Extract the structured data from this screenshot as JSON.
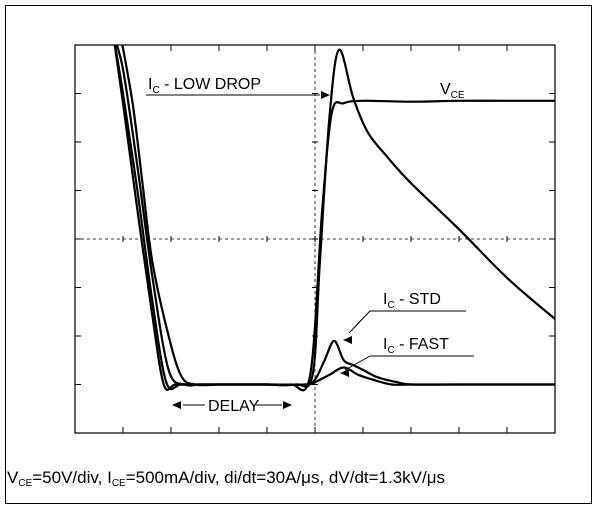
{
  "chart_data": {
    "type": "line",
    "title": "",
    "xlabel": "",
    "ylabel": "",
    "xlim": [
      0,
      10
    ],
    "ylim": [
      0,
      8
    ],
    "grid": "oscilloscope graticule: 10 x 8 divisions, dashed center lines, minor ticks",
    "series": [
      {
        "name": "VCE",
        "x": [
          0.95,
          1.2,
          1.4,
          1.6,
          1.9,
          2.2,
          2.5,
          3.0,
          3.5,
          4.0,
          4.5,
          4.9,
          5.15,
          5.35,
          5.6,
          6.0,
          7.0,
          8.0,
          9.0,
          10.0
        ],
        "values": [
          8.2,
          6.8,
          5.2,
          3.6,
          2.2,
          1.2,
          1.0,
          1.0,
          1.0,
          1.0,
          1.0,
          1.2,
          4.6,
          6.6,
          6.8,
          6.85,
          6.83,
          6.85,
          6.85,
          6.85
        ]
      },
      {
        "name": "IC - LOW DROP",
        "x": [
          0.8,
          1.0,
          1.3,
          1.6,
          1.95,
          2.3,
          2.6,
          3.0,
          3.5,
          4.0,
          4.6,
          4.95,
          5.1,
          5.3,
          5.5,
          5.8,
          6.1,
          6.5,
          7.0,
          8.0,
          9.0,
          10.0
        ],
        "values": [
          8.2,
          7.5,
          5.5,
          3.3,
          1.3,
          1.0,
          1.0,
          1.0,
          1.0,
          1.0,
          1.0,
          1.2,
          3.5,
          6.5,
          7.9,
          6.9,
          6.2,
          5.7,
          5.15,
          4.2,
          3.2,
          2.35
        ]
      },
      {
        "name": "IC - STD",
        "x": [
          0.8,
          1.0,
          1.3,
          1.6,
          1.9,
          2.2,
          2.6,
          3.0,
          4.0,
          4.8,
          5.0,
          5.2,
          5.4,
          5.6,
          5.8,
          6.0,
          6.3,
          6.7,
          7.0,
          8.0,
          9.0,
          10.0
        ],
        "values": [
          8.2,
          7.0,
          5.0,
          2.8,
          1.05,
          1.0,
          1.0,
          1.0,
          1.0,
          1.0,
          1.1,
          1.5,
          1.9,
          1.5,
          1.4,
          1.3,
          1.15,
          1.05,
          1.0,
          1.0,
          1.0,
          1.0
        ]
      },
      {
        "name": "IC - FAST",
        "x": [
          0.8,
          1.0,
          1.3,
          1.6,
          1.85,
          2.1,
          2.6,
          3.0,
          4.0,
          4.8,
          5.0,
          5.3,
          5.6,
          5.9,
          6.2,
          6.6,
          7.0,
          8.0,
          9.0,
          10.0
        ],
        "values": [
          8.2,
          6.8,
          4.6,
          2.5,
          1.0,
          1.0,
          1.0,
          1.0,
          1.0,
          1.0,
          1.05,
          1.2,
          1.35,
          1.2,
          1.1,
          1.0,
          1.0,
          1.0,
          1.0,
          1.0
        ]
      }
    ],
    "annotations": [
      {
        "id": "vce",
        "main": "V",
        "sub": "CE",
        "rest": ""
      },
      {
        "id": "ic_low_drop",
        "main": "I",
        "sub": "C",
        "rest": " - LOW DROP"
      },
      {
        "id": "ic_std",
        "main": "I",
        "sub": "C",
        "rest": " - STD"
      },
      {
        "id": "ic_fast",
        "main": "I",
        "sub": "C",
        "rest": " - FAST"
      },
      {
        "id": "delay",
        "main": "DELAY",
        "sub": "",
        "rest": ""
      }
    ]
  },
  "caption": {
    "v": "V",
    "v_sub": "CE",
    "v_rest": "=50V/div, ",
    "i": "I",
    "i_sub": "CE",
    "i_rest": "=500mA/div, di/dt=30A/μs, dV/dt=1.3kV/μs"
  },
  "colors": {
    "trace": "#000000",
    "background": "#ffffff"
  }
}
